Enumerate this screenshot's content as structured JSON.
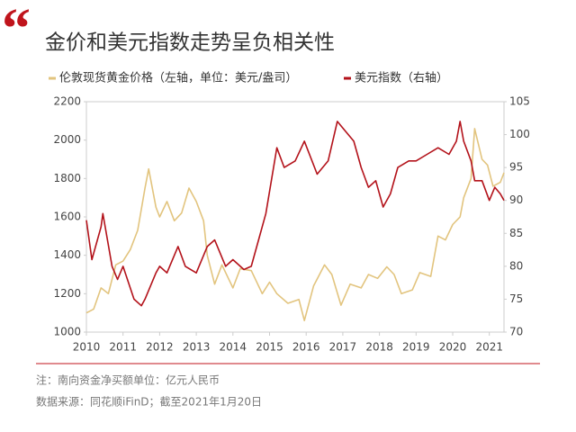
{
  "chart_data": {
    "type": "line",
    "title": "金价和美元指数走势呈负相关性",
    "note": "注：南向资金净买额单位：亿元人民币",
    "source": "数据来源：同花顺iFinD；截至2021年1月20日",
    "xlim": [
      2010,
      2021.4
    ],
    "xticks": [
      2010,
      2011,
      2012,
      2013,
      2014,
      2015,
      2016,
      2017,
      2018,
      2019,
      2020,
      2021
    ],
    "ylim": [
      1000,
      2200
    ],
    "yticks": [
      1000,
      1200,
      1400,
      1600,
      1800,
      2000,
      2200
    ],
    "y2lim": [
      70,
      105
    ],
    "y2ticks": [
      70,
      75,
      80,
      85,
      90,
      95,
      100,
      105
    ],
    "grid": false,
    "series": [
      {
        "name": "伦敦现货黄金价格（左轴，单位：美元/盎司）",
        "color": "#e2c47e",
        "x": [
          2010.0,
          2010.2,
          2010.4,
          2010.6,
          2010.8,
          2011.0,
          2011.2,
          2011.4,
          2011.6,
          2011.7,
          2011.9,
          2012.0,
          2012.2,
          2012.4,
          2012.6,
          2012.8,
          2013.0,
          2013.2,
          2013.3,
          2013.5,
          2013.7,
          2014.0,
          2014.2,
          2014.5,
          2014.8,
          2015.0,
          2015.2,
          2015.5,
          2015.8,
          2015.95,
          2016.2,
          2016.5,
          2016.7,
          2016.95,
          2017.2,
          2017.5,
          2017.7,
          2017.95,
          2018.2,
          2018.4,
          2018.6,
          2018.9,
          2019.1,
          2019.4,
          2019.6,
          2019.8,
          2020.0,
          2020.2,
          2020.3,
          2020.5,
          2020.6,
          2020.8,
          2020.95,
          2021.1,
          2021.3,
          2021.4
        ],
        "values": [
          1100,
          1120,
          1230,
          1200,
          1350,
          1370,
          1430,
          1530,
          1750,
          1850,
          1650,
          1600,
          1680,
          1580,
          1620,
          1750,
          1680,
          1580,
          1400,
          1250,
          1350,
          1230,
          1330,
          1320,
          1200,
          1260,
          1200,
          1150,
          1170,
          1060,
          1240,
          1350,
          1300,
          1140,
          1250,
          1230,
          1300,
          1280,
          1340,
          1300,
          1200,
          1220,
          1310,
          1290,
          1500,
          1480,
          1560,
          1600,
          1700,
          1800,
          2060,
          1900,
          1870,
          1760,
          1780,
          1830
        ]
      },
      {
        "name": "美元指数（右轴）",
        "color": "#b3121a",
        "axis": "y2",
        "x": [
          2010.0,
          2010.15,
          2010.4,
          2010.45,
          2010.7,
          2010.85,
          2011.0,
          2011.3,
          2011.5,
          2011.6,
          2011.9,
          2012.0,
          2012.2,
          2012.5,
          2012.7,
          2013.0,
          2013.3,
          2013.5,
          2013.8,
          2014.0,
          2014.3,
          2014.5,
          2014.7,
          2014.9,
          2015.2,
          2015.4,
          2015.7,
          2015.95,
          2016.3,
          2016.6,
          2016.85,
          2017.0,
          2017.3,
          2017.5,
          2017.7,
          2017.9,
          2018.1,
          2018.3,
          2018.5,
          2018.8,
          2019.0,
          2019.3,
          2019.6,
          2019.9,
          2020.1,
          2020.2,
          2020.3,
          2020.5,
          2020.6,
          2020.8,
          2021.0,
          2021.15,
          2021.3,
          2021.4
        ],
        "values": [
          87,
          81,
          86,
          88,
          80,
          78,
          80,
          75,
          74,
          75,
          79,
          80,
          79,
          83,
          80,
          79,
          83,
          84,
          80,
          81,
          79.5,
          80,
          84,
          88,
          98,
          95,
          96,
          99,
          94,
          96,
          102,
          101,
          99,
          95,
          92,
          93,
          89,
          91,
          95,
          96,
          96,
          97,
          98,
          97,
          99,
          102,
          99,
          96,
          93,
          93,
          90,
          92,
          91,
          90
        ]
      }
    ]
  }
}
